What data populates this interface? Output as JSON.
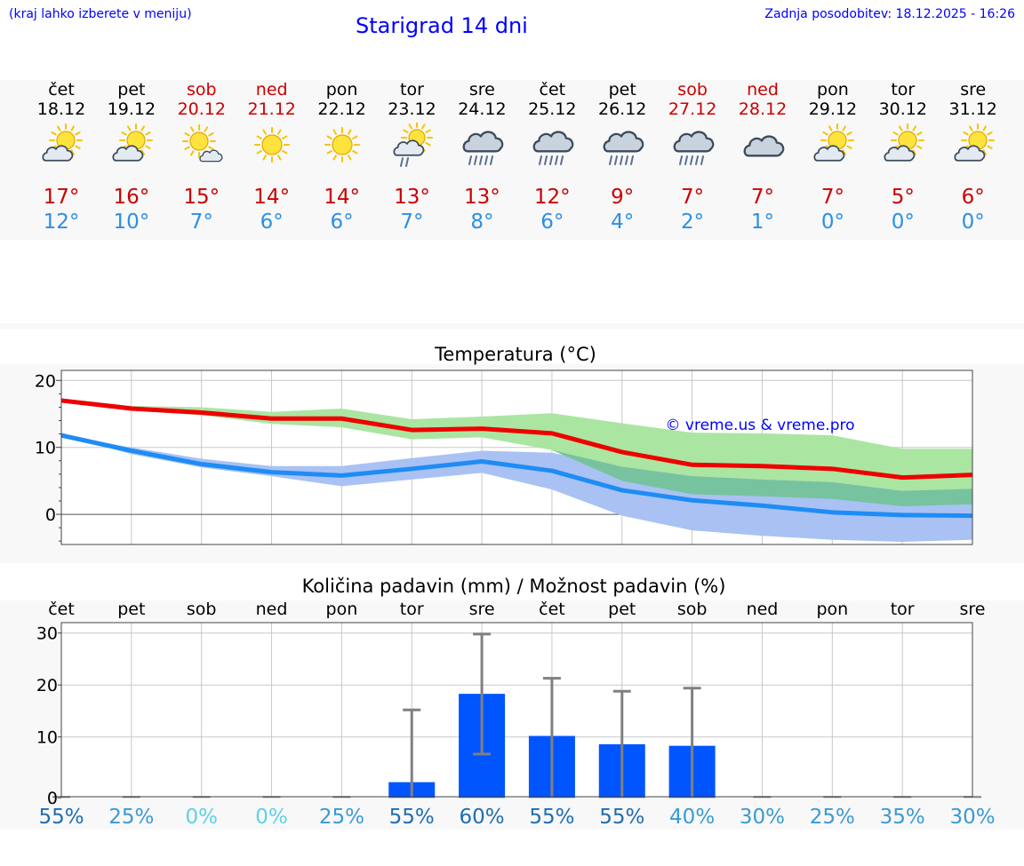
{
  "header": {
    "hint": "(kraj lahko izberete v meniju)",
    "title": "Starigrad 14 dni",
    "updated": "Zadnja posodobitev: 18.12.2025 - 16:26"
  },
  "days": [
    {
      "name": "čet",
      "date": "18.12",
      "weekend": false,
      "icon": "sun-cloud-icon",
      "tmax": "17°",
      "tmin": "12°"
    },
    {
      "name": "pet",
      "date": "19.12",
      "weekend": false,
      "icon": "sun-cloud-icon",
      "tmax": "16°",
      "tmin": "10°"
    },
    {
      "name": "sob",
      "date": "20.12",
      "weekend": true,
      "icon": "sun-small-cloud-icon",
      "tmax": "15°",
      "tmin": "7°"
    },
    {
      "name": "ned",
      "date": "21.12",
      "weekend": true,
      "icon": "sun-icon",
      "tmax": "14°",
      "tmin": "6°"
    },
    {
      "name": "pon",
      "date": "22.12",
      "weekend": false,
      "icon": "sun-icon",
      "tmax": "14°",
      "tmin": "6°"
    },
    {
      "name": "tor",
      "date": "23.12",
      "weekend": false,
      "icon": "sun-cloud-light-rain-icon",
      "tmax": "13°",
      "tmin": "7°"
    },
    {
      "name": "sre",
      "date": "24.12",
      "weekend": false,
      "icon": "cloud-rain-icon",
      "tmax": "13°",
      "tmin": "8°"
    },
    {
      "name": "čet",
      "date": "25.12",
      "weekend": false,
      "icon": "cloud-rain-icon",
      "tmax": "12°",
      "tmin": "6°"
    },
    {
      "name": "pet",
      "date": "26.12",
      "weekend": false,
      "icon": "cloud-rain-icon",
      "tmax": "9°",
      "tmin": "4°"
    },
    {
      "name": "sob",
      "date": "27.12",
      "weekend": true,
      "icon": "cloud-rain-icon",
      "tmax": "7°",
      "tmin": "2°"
    },
    {
      "name": "ned",
      "date": "28.12",
      "weekend": true,
      "icon": "cloud-icon",
      "tmax": "7°",
      "tmin": "1°"
    },
    {
      "name": "pon",
      "date": "29.12",
      "weekend": false,
      "icon": "sun-cloud-icon",
      "tmax": "7°",
      "tmin": "0°"
    },
    {
      "name": "tor",
      "date": "30.12",
      "weekend": false,
      "icon": "sun-cloud-icon",
      "tmax": "5°",
      "tmin": "0°"
    },
    {
      "name": "sre",
      "date": "31.12",
      "weekend": false,
      "icon": "sun-cloud-icon",
      "tmax": "6°",
      "tmin": "0°"
    }
  ],
  "colors": {
    "weekend": "#cc0000",
    "tmax": "#cc0000",
    "tmin": "#2b8fe6",
    "max_band": "#abe5a2",
    "min_band": "#a9c2f3",
    "overlap_band": "#77c39f",
    "max_line": "#ee0000",
    "min_line": "#1e8cf5",
    "bar": "#0055ff",
    "whisker": "#808080",
    "title_blue": "#0000ff"
  },
  "chart_data": [
    {
      "type": "line",
      "title": "Temperatura (°C)",
      "watermark": "© vreme.us & vreme.pro",
      "xlabel": "",
      "ylabel": "",
      "ylim": [
        -4.5,
        21.5
      ],
      "yticks": [
        0,
        10,
        20
      ],
      "x": [
        0,
        1,
        2,
        3,
        4,
        5,
        6,
        7,
        8,
        9,
        10,
        11,
        12,
        13
      ],
      "series": [
        {
          "name": "max",
          "values": [
            17,
            15.8,
            15.2,
            14.3,
            14.3,
            12.6,
            12.8,
            12.1,
            9.3,
            7.4,
            7.2,
            6.8,
            5.5,
            5.9
          ],
          "band_low": [
            16.8,
            15.5,
            14.8,
            13.5,
            13.0,
            11.2,
            11.5,
            9.6,
            5.0,
            3.0,
            2.7,
            2.3,
            1.2,
            1.5
          ],
          "band_high": [
            17.3,
            16.2,
            16.0,
            15.3,
            15.8,
            14.2,
            14.6,
            15.1,
            13.6,
            12.2,
            12.1,
            11.8,
            9.8,
            9.8
          ]
        },
        {
          "name": "min",
          "values": [
            11.8,
            9.5,
            7.5,
            6.3,
            5.8,
            6.8,
            7.9,
            6.5,
            3.6,
            2.1,
            1.3,
            0.3,
            -0.1,
            -0.2
          ],
          "band_low": [
            11.8,
            9.0,
            7.0,
            5.7,
            4.2,
            5.2,
            6.2,
            3.7,
            -0.2,
            -2.4,
            -3.2,
            -3.8,
            -4.1,
            -3.8
          ],
          "band_high": [
            11.8,
            10.0,
            8.3,
            7.2,
            7.2,
            8.4,
            9.5,
            9.2,
            7.1,
            5.7,
            5.2,
            4.8,
            3.5,
            3.8
          ]
        }
      ]
    },
    {
      "type": "bar",
      "title": "Količina padavin (mm) / Možnost padavin (%)",
      "categories": [
        "čet",
        "pet",
        "sob",
        "ned",
        "pon",
        "tor",
        "sre",
        "čet",
        "pet",
        "sob",
        "ned",
        "pon",
        "tor",
        "sre"
      ],
      "ylim": [
        -1.5,
        32
      ],
      "yticks": [
        0,
        10,
        20,
        30
      ],
      "values": [
        0,
        0,
        0,
        0,
        0,
        1.3,
        18.3,
        10.2,
        8.6,
        8.3,
        0,
        0,
        0,
        0
      ],
      "error_high": [
        0,
        0,
        0,
        0,
        0,
        15.2,
        29.8,
        21.3,
        18.8,
        19.4,
        0,
        0,
        0,
        0
      ],
      "error_low": [
        0,
        0,
        0,
        0,
        0,
        0,
        6.7,
        0,
        0,
        0,
        0,
        0,
        0,
        0
      ],
      "probability": [
        "55%",
        "25%",
        "0%",
        "0%",
        "25%",
        "55%",
        "60%",
        "55%",
        "55%",
        "40%",
        "30%",
        "25%",
        "35%",
        "30%"
      ],
      "probability_colors": [
        "#1f6db3",
        "#3a9ad6",
        "#5cd1e8",
        "#5cd1e8",
        "#3a9ad6",
        "#1f6db3",
        "#1f6db3",
        "#1f6db3",
        "#1f6db3",
        "#3a9ad6",
        "#3a9ad6",
        "#3a9ad6",
        "#3a9ad6",
        "#3a9ad6"
      ]
    }
  ]
}
